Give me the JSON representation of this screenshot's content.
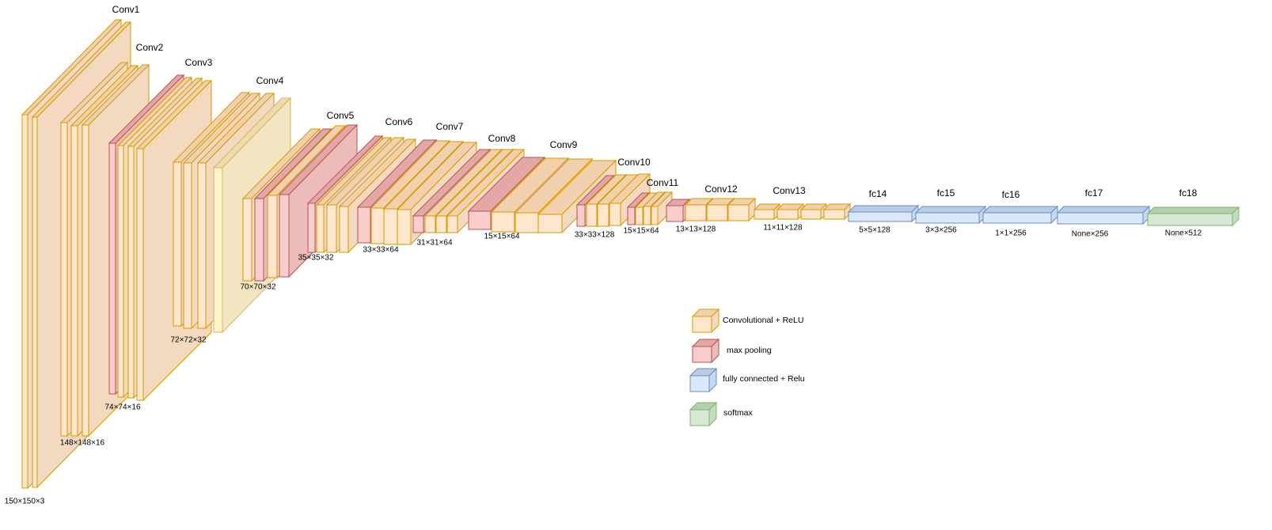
{
  "layers": [
    "Conv1",
    "Conv2",
    "Conv3",
    "Conv4",
    "Conv5",
    "Conv6",
    "Conv7",
    "Conv8",
    "Conv9",
    "Conv10",
    "Conv11",
    "Conv12",
    "Conv13",
    "fc14",
    "fc15",
    "fc16",
    "fc17",
    "fc18"
  ],
  "dimensions": [
    "150×150×3",
    "148×148×16",
    "74×74×16",
    "72×72×32",
    "70×70×32",
    "35×35×32",
    "33×33×64",
    "31×31×64",
    "15×15×64",
    "33×33×128",
    "15×15×64",
    "13×13×128",
    "11×11×128",
    "5×5×128",
    "3×3×256",
    "1×1×256",
    "None×256",
    "None×512"
  ],
  "legend": [
    "Convolutional + ReLU",
    "max pooling",
    "fully connected + Relu",
    "softmax"
  ]
}
